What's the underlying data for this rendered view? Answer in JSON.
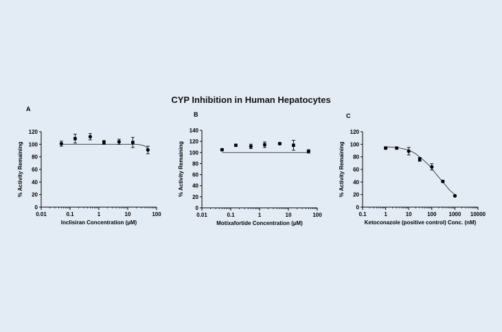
{
  "figure": {
    "title": "CYP Inhibition in Human Hepatocytes"
  },
  "chart_data": [
    {
      "panel_label": "A",
      "type": "scatter",
      "xscale": "log",
      "xlabel": "Inclisiran Concentration (µM)",
      "ylabel": "% Activity Remaining",
      "xlim": [
        0.01,
        100
      ],
      "ylim": [
        0,
        120
      ],
      "xticks": [
        0.01,
        0.1,
        1,
        10,
        100
      ],
      "xtick_labels": [
        "0.01",
        "0.1",
        "1",
        "10",
        "100"
      ],
      "yticks": [
        0,
        20,
        40,
        60,
        80,
        100,
        120
      ],
      "ytick_labels": [
        "0",
        "20",
        "40",
        "60",
        "80",
        "100",
        "120"
      ],
      "points": [
        {
          "x": 0.05,
          "y": 101,
          "err": 4
        },
        {
          "x": 0.15,
          "y": 109,
          "err": 7
        },
        {
          "x": 0.5,
          "y": 112,
          "err": 5
        },
        {
          "x": 1.5,
          "y": 103,
          "err": 3
        },
        {
          "x": 5,
          "y": 104,
          "err": 4
        },
        {
          "x": 15,
          "y": 103,
          "err": 8
        },
        {
          "x": 50,
          "y": 91,
          "err": 6
        }
      ],
      "fit": [
        [
          0.05,
          100
        ],
        [
          20,
          100
        ],
        [
          30,
          99
        ],
        [
          40,
          97
        ],
        [
          50,
          93
        ]
      ]
    },
    {
      "panel_label": "B",
      "type": "scatter",
      "xscale": "log",
      "xlabel": "Motixafortide Concentration (µM)",
      "ylabel": "% Activity Remaining",
      "xlim": [
        0.01,
        100
      ],
      "ylim": [
        0,
        140
      ],
      "xticks": [
        0.01,
        0.1,
        1,
        10,
        100
      ],
      "xtick_labels": [
        "0.01",
        "0.1",
        "1",
        "10",
        "100"
      ],
      "yticks": [
        0,
        20,
        40,
        60,
        80,
        100,
        120,
        140
      ],
      "ytick_labels": [
        "0",
        "20",
        "40",
        "60",
        "80",
        "100",
        "120",
        "140"
      ],
      "points": [
        {
          "x": 0.05,
          "y": 105,
          "err": 2
        },
        {
          "x": 0.15,
          "y": 113,
          "err": 2
        },
        {
          "x": 0.5,
          "y": 111,
          "err": 4
        },
        {
          "x": 1.5,
          "y": 114,
          "err": 5
        },
        {
          "x": 5,
          "y": 116,
          "err": 2
        },
        {
          "x": 15,
          "y": 113,
          "err": 9
        },
        {
          "x": 50,
          "y": 102,
          "err": 3
        }
      ],
      "fit": [
        [
          0.05,
          100
        ],
        [
          50,
          100
        ]
      ]
    },
    {
      "panel_label": "C",
      "type": "scatter",
      "xscale": "log",
      "xlabel": "Ketoconazole (positive control) Conc. (nM)",
      "ylabel": "% Activity Remaining",
      "xlim": [
        0.1,
        10000
      ],
      "ylim": [
        0,
        120
      ],
      "xticks": [
        0.1,
        1,
        10,
        100,
        1000,
        10000
      ],
      "xtick_labels": [
        "0.1",
        "1",
        "10",
        "100",
        "1000",
        "10000"
      ],
      "yticks": [
        0,
        20,
        40,
        60,
        80,
        100,
        120
      ],
      "ytick_labels": [
        "0",
        "20",
        "40",
        "60",
        "80",
        "100",
        "120"
      ],
      "points": [
        {
          "x": 1,
          "y": 94,
          "err": 2
        },
        {
          "x": 3,
          "y": 94,
          "err": 2
        },
        {
          "x": 10,
          "y": 89,
          "err": 6
        },
        {
          "x": 30,
          "y": 76,
          "err": 3
        },
        {
          "x": 100,
          "y": 64,
          "err": 5
        },
        {
          "x": 300,
          "y": 41,
          "err": 1
        },
        {
          "x": 1000,
          "y": 18,
          "err": 1
        }
      ],
      "fit": [
        [
          1,
          96
        ],
        [
          3,
          95
        ],
        [
          10,
          91
        ],
        [
          20,
          85
        ],
        [
          40,
          76
        ],
        [
          80,
          66
        ],
        [
          150,
          53
        ],
        [
          300,
          40
        ],
        [
          600,
          27
        ],
        [
          1000,
          20
        ]
      ]
    }
  ]
}
